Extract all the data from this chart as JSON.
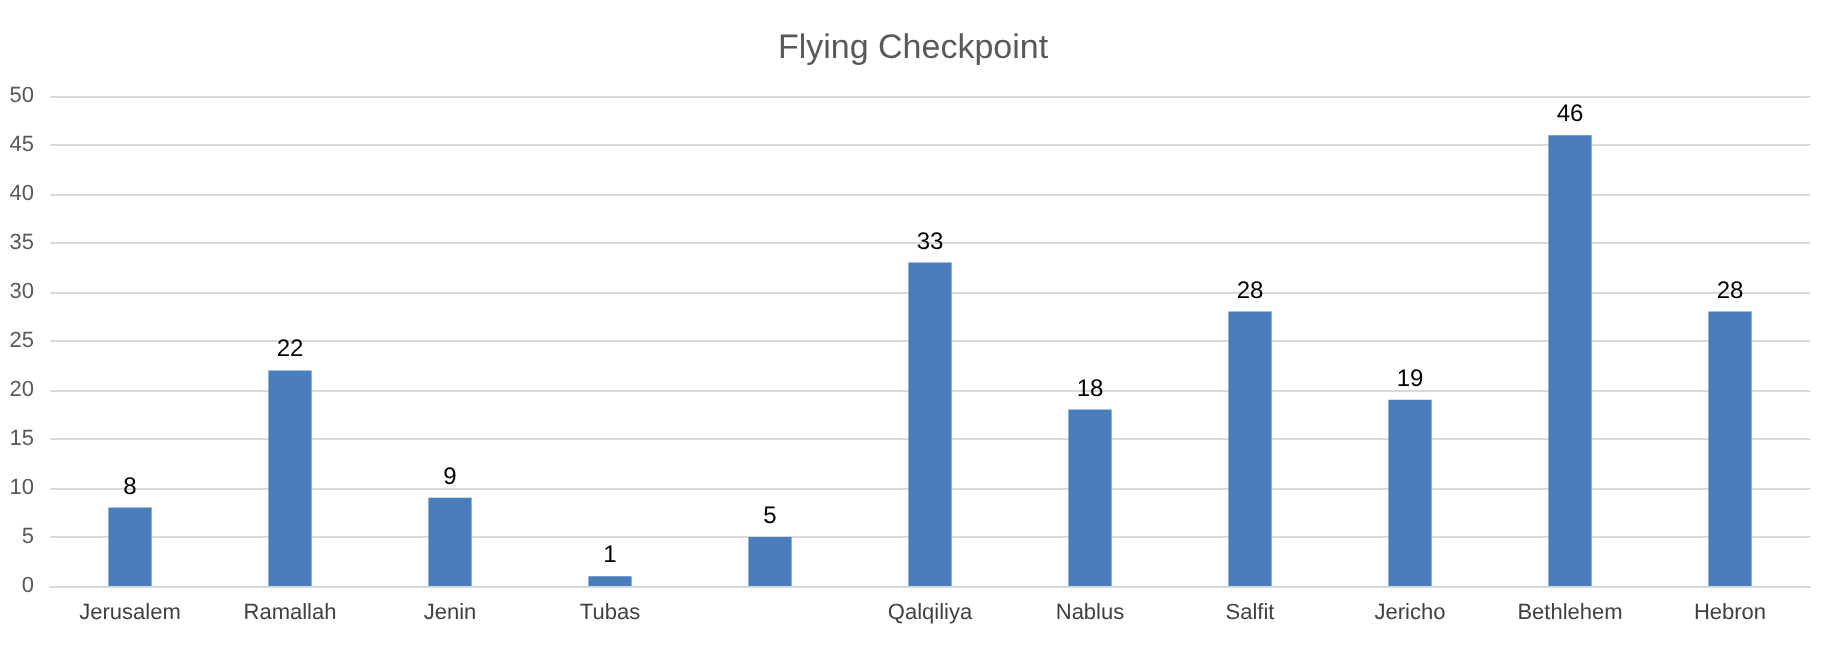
{
  "chart_data": {
    "type": "bar",
    "title": "Flying Checkpoint",
    "categories": [
      "Jerusalem",
      "Ramallah",
      "Jenin",
      "Tubas",
      null,
      "Qalqiliya",
      "Nablus",
      "Salfit",
      "Jericho",
      "Bethlehem",
      "Hebron"
    ],
    "values": [
      8,
      22,
      9,
      1,
      5,
      33,
      18,
      28,
      19,
      46,
      28
    ],
    "color": "#4a7ebb",
    "ylim": [
      0,
      50
    ],
    "yticks": [
      0,
      5,
      10,
      15,
      20,
      25,
      30,
      35,
      40,
      45,
      50
    ],
    "grid": "y",
    "data_labels": true
  }
}
